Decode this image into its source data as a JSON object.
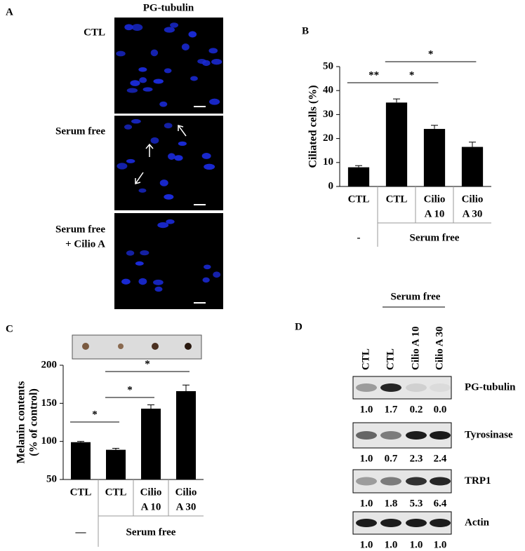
{
  "panel_a": {
    "panel_label": "A",
    "title": "PG-tubulin",
    "rows": [
      [
        "CTL"
      ],
      [
        "Serum free"
      ],
      [
        "Serum free",
        "+ Cilio A"
      ]
    ]
  },
  "chart_data": [
    {
      "type": "bar",
      "panel_label": "B",
      "ylabel": [
        "Ciliated cells (%)"
      ],
      "categories": [
        [
          "CTL"
        ],
        [
          "CTL"
        ],
        [
          "Cilio",
          "A 10"
        ],
        [
          "Cilio",
          "A 30"
        ]
      ],
      "values": [
        8,
        35,
        24,
        16.5
      ],
      "errors": [
        0.7,
        1.5,
        1.5,
        2
      ],
      "color": "#000000",
      "ylim": [
        0,
        50
      ],
      "yticks": [
        0,
        10,
        20,
        30,
        40,
        50
      ],
      "groups": [
        {
          "label": "-",
          "span": [
            0,
            0
          ]
        },
        {
          "label": "Serum free",
          "span": [
            1,
            3
          ]
        }
      ],
      "significance": [
        {
          "label": "**",
          "span": [
            0,
            1
          ]
        },
        {
          "label": "*",
          "span": [
            1,
            2
          ]
        },
        {
          "label": "*",
          "span": [
            1,
            3
          ]
        }
      ]
    },
    {
      "type": "bar",
      "panel_label": "C",
      "ylabel": [
        "Melanin contents",
        "(% of control)"
      ],
      "categories": [
        [
          "CTL"
        ],
        [
          "CTL"
        ],
        [
          "Cilio",
          "A 10"
        ],
        [
          "Cilio",
          "A 30"
        ]
      ],
      "values": [
        99,
        89,
        143,
        166
      ],
      "errors": [
        1,
        2,
        5,
        8
      ],
      "color": "#000000",
      "ylim": [
        50,
        200
      ],
      "yticks": [
        50,
        100,
        150,
        200
      ],
      "groups": [
        {
          "label": "—",
          "span": [
            0,
            0
          ]
        },
        {
          "label": "Serum free",
          "span": [
            1,
            3
          ]
        }
      ],
      "significance": [
        {
          "label": "*",
          "span": [
            0,
            1
          ]
        },
        {
          "label": "*",
          "span": [
            1,
            2
          ]
        },
        {
          "label": "*",
          "span": [
            1,
            3
          ]
        }
      ]
    }
  ],
  "panel_d": {
    "panel_label": "D",
    "header": "Serum free",
    "lanes": [
      "CTL",
      "CTL",
      "Cilio A 10",
      "Cilio A 30"
    ],
    "blots": [
      {
        "name": "PG-tubulin",
        "quant": [
          "1.0",
          "1.7",
          "0.2",
          "0.0"
        ]
      },
      {
        "name": "Tyrosinase",
        "quant": [
          "1.0",
          "0.7",
          "2.3",
          "2.4"
        ]
      },
      {
        "name": "TRP1",
        "quant": [
          "1.0",
          "1.8",
          "5.3",
          "6.4"
        ]
      },
      {
        "name": "Actin",
        "quant": [
          "1.0",
          "1.0",
          "1.0",
          "1.0"
        ]
      }
    ]
  }
}
